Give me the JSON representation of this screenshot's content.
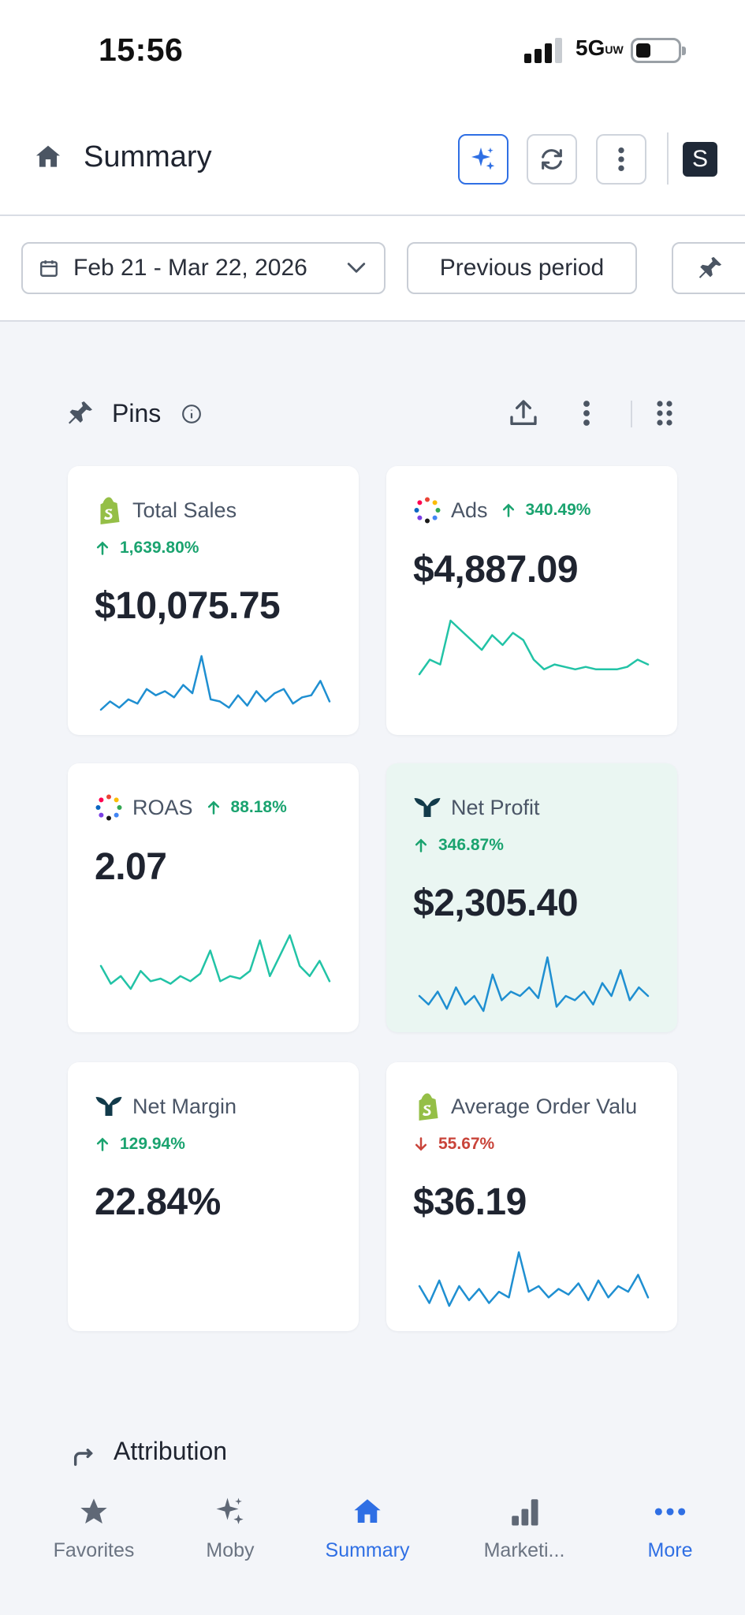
{
  "status_bar": {
    "time": "15:56",
    "network": "5G",
    "network_sub": "UW"
  },
  "header": {
    "title": "Summary",
    "store_initial": "S"
  },
  "filters": {
    "date_range": "Feb 21 - Mar 22, 2026",
    "compare": "Previous period"
  },
  "pins": {
    "title": "Pins",
    "cards": [
      {
        "title": "Total Sales",
        "change": "1,639.80%",
        "direction": "up",
        "value": "$10,075.75",
        "spark": [
          2,
          6,
          3,
          7,
          5,
          12,
          9,
          11,
          8,
          14,
          10,
          28,
          7,
          6,
          3,
          9,
          4,
          11,
          6,
          10,
          12,
          5,
          8,
          9,
          16,
          6
        ],
        "spark_color": "#1f8fd1"
      },
      {
        "title": "Ads",
        "change": "340.49%",
        "direction": "up",
        "value": "$4,887.09",
        "spark": [
          8,
          14,
          12,
          30,
          26,
          22,
          18,
          24,
          20,
          25,
          22,
          14,
          10,
          12,
          11,
          10,
          11,
          10,
          10,
          10,
          11,
          14,
          12
        ],
        "spark_color": "#22c3a6"
      },
      {
        "title": "ROAS",
        "change": "88.18%",
        "direction": "up",
        "value": "2.07",
        "spark": [
          12,
          5,
          8,
          3,
          10,
          6,
          7,
          5,
          8,
          6,
          9,
          18,
          6,
          8,
          7,
          10,
          22,
          8,
          16,
          24,
          12,
          8,
          14,
          6
        ],
        "spark_color": "#22c3a6"
      },
      {
        "title": "Net Profit",
        "change": "346.87%",
        "direction": "up",
        "value": "$2,305.40",
        "spark": [
          10,
          6,
          12,
          4,
          14,
          6,
          10,
          3,
          20,
          8,
          12,
          10,
          14,
          9,
          28,
          5,
          10,
          8,
          12,
          6,
          16,
          10,
          22,
          8,
          14,
          10
        ],
        "spark_color": "#1f8fd1"
      },
      {
        "title": "Net Margin",
        "change": "129.94%",
        "direction": "up",
        "value": "22.84%",
        "spark": [],
        "spark_color": "#22c3a6"
      },
      {
        "title": "Average Order Valu",
        "change": "55.67%",
        "direction": "down",
        "value": "$36.19",
        "spark": [
          10,
          4,
          12,
          3,
          10,
          5,
          9,
          4,
          8,
          6,
          22,
          8,
          10,
          6,
          9,
          7,
          11,
          5,
          12,
          6,
          10,
          8,
          14,
          6
        ],
        "spark_color": "#1f8fd1"
      }
    ]
  },
  "next_section": {
    "title": "Attribution"
  },
  "tabbar": {
    "tabs": [
      {
        "label": "Favorites"
      },
      {
        "label": "Moby"
      },
      {
        "label": "Summary"
      },
      {
        "label": "Marketi..."
      },
      {
        "label": "More"
      }
    ]
  }
}
